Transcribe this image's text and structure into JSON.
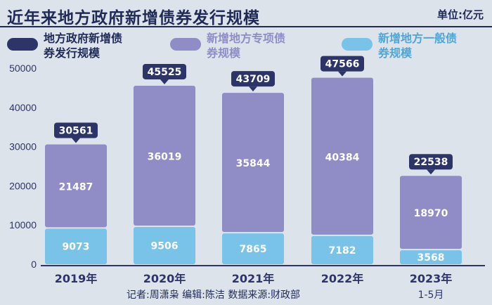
{
  "title": "近年来地方政府新增债券发行规模",
  "unit": "单位:亿元",
  "legend": [
    {
      "label": "地方政府新增债券发行规模",
      "color": "#2d3568"
    },
    {
      "label": "新增地方专项债券规模",
      "color": "#8f8cc6"
    },
    {
      "label": "新增地方一般债券规模",
      "color": "#79c2e8"
    }
  ],
  "credits": "记者:周潇枭  编辑:陈洁  数据来源:财政部",
  "colors": {
    "total_label": "#2d3568",
    "special": "#8f8cc6",
    "general": "#79c2e8",
    "axis_text": "#2d3568"
  },
  "chart_data": {
    "type": "bar",
    "stacked": true,
    "categories": [
      "2019年",
      "2020年",
      "2021年",
      "2022年",
      "2023年"
    ],
    "category_sublabels": [
      "",
      "",
      "",
      "",
      "1-5月"
    ],
    "series": [
      {
        "name": "新增地方一般债券规模",
        "values": [
          9073,
          9506,
          7865,
          7182,
          3568
        ]
      },
      {
        "name": "新增地方专项债券规模",
        "values": [
          21487,
          36019,
          35844,
          40384,
          18970
        ]
      }
    ],
    "totals": {
      "name": "地方政府新增债券发行规模",
      "values": [
        30561,
        45525,
        43709,
        47566,
        22538
      ]
    },
    "ylim": [
      0,
      50000
    ],
    "yticks": [
      0,
      10000,
      20000,
      30000,
      40000,
      50000
    ],
    "grid": false,
    "legend_position": "top"
  }
}
